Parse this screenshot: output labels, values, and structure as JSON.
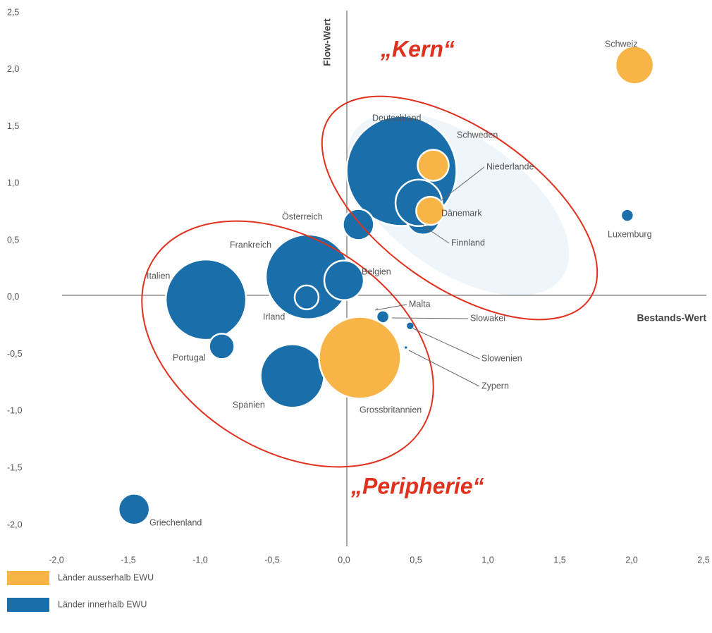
{
  "chart_data": {
    "type": "bubble",
    "xlabel": "Bestands-Wert",
    "ylabel": "Flow-Wert",
    "annotations": [
      "„Kern“",
      "„Peripherie“"
    ],
    "xlim": [
      -2.0,
      2.5
    ],
    "ylim": [
      -2.0,
      2.5
    ],
    "xticks": [
      {
        "value": -2.0,
        "label": "-2,0"
      },
      {
        "value": -1.5,
        "label": "-1,5"
      },
      {
        "value": -1.0,
        "label": "-1,0"
      },
      {
        "value": -0.5,
        "label": "-0,5"
      },
      {
        "value": 0.0,
        "label": "0,0"
      },
      {
        "value": 0.5,
        "label": "0,5"
      },
      {
        "value": 1.0,
        "label": "1,0"
      },
      {
        "value": 1.5,
        "label": "1,5"
      },
      {
        "value": 2.0,
        "label": "2,0"
      },
      {
        "value": 2.5,
        "label": "2,5"
      }
    ],
    "yticks": [
      {
        "value": 2.5,
        "label": "2,5"
      },
      {
        "value": 2.0,
        "label": "2,0"
      },
      {
        "value": 1.5,
        "label": "1,5"
      },
      {
        "value": 1.0,
        "label": "1,0"
      },
      {
        "value": 0.5,
        "label": "0,5"
      },
      {
        "value": 0.0,
        "label": "0,0"
      },
      {
        "value": -0.5,
        "label": "-0,5"
      },
      {
        "value": -1.0,
        "label": "-1,0"
      },
      {
        "value": -1.5,
        "label": "-1,5"
      },
      {
        "value": -2.0,
        "label": "-2,0"
      }
    ],
    "series": [
      {
        "name": "Länder innerhalb EWU",
        "color": "#1a6fab",
        "labels": [
          "Italien",
          "Frankreich",
          "Irland",
          "Belgien",
          "Deutschland",
          "Finnland",
          "Niederlande",
          "Österreich",
          "Portugal",
          "Spanien",
          "Luxemburg",
          "Malta",
          "Slowakei",
          "Slowenien",
          "Zypern",
          "Griechenland"
        ],
        "x": [
          -0.96,
          -0.25,
          -0.26,
          0.0,
          0.4,
          0.55,
          0.52,
          0.1,
          -0.85,
          -0.36,
          1.97,
          0.23,
          0.27,
          0.46,
          0.43,
          -1.46
        ],
        "values": [
          -0.02,
          0.18,
          0.0,
          0.15,
          1.11,
          0.7,
          0.83,
          0.64,
          -0.43,
          -0.69,
          0.72,
          -0.1,
          -0.17,
          -0.25,
          -0.44,
          -1.86
        ],
        "sizes": [
          5.7,
          6.0,
          1.7,
          2.8,
          7.8,
          2.4,
          3.3,
          2.2,
          1.8,
          4.5,
          0.9,
          0.2,
          0.9,
          0.6,
          0.3,
          2.2
        ]
      },
      {
        "name": "Länder ausserhalb EWU",
        "color": "#f7b548",
        "labels": [
          "Schweiz",
          "Schweden",
          "Dänemark",
          "Grossbritannien"
        ],
        "x": [
          2.02,
          0.62,
          0.6,
          0.11
        ],
        "values": [
          2.04,
          1.16,
          0.76,
          -0.53
        ],
        "sizes": [
          2.7,
          2.2,
          2.0,
          5.8
        ]
      }
    ]
  }
}
